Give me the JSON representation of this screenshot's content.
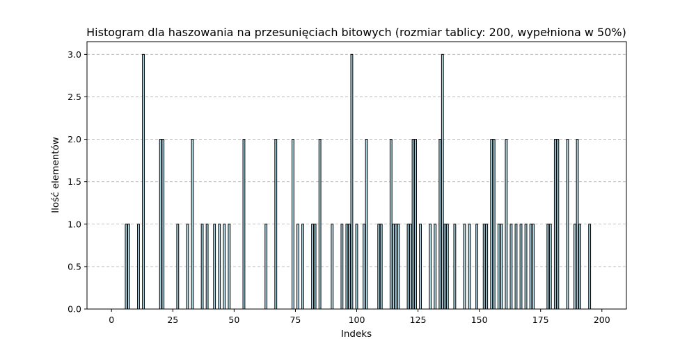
{
  "chart_data": {
    "type": "bar",
    "title": "Histogram dla haszowania na przesunięciach bitowych (rozmiar tablicy: 200, wypełniona w 50%)",
    "xlabel": "Indeks",
    "ylabel": "Ilość elementów",
    "xlim": [
      -10,
      210
    ],
    "ylim": [
      0,
      3.15
    ],
    "xticks": [
      0,
      25,
      50,
      75,
      100,
      125,
      150,
      175,
      200
    ],
    "xtick_labels": [
      "0",
      "25",
      "50",
      "75",
      "100",
      "125",
      "150",
      "175",
      "200"
    ],
    "yticks": [
      0.0,
      0.5,
      1.0,
      1.5,
      2.0,
      2.5,
      3.0
    ],
    "ytick_labels": [
      "0.0",
      "0.5",
      "1.0",
      "1.5",
      "2.0",
      "2.5",
      "3.0"
    ],
    "grid": "y-dashed",
    "bar_color": "#add8e6",
    "edge_color": "#000000",
    "x": [
      6,
      7,
      11,
      13,
      20,
      21,
      27,
      31,
      33,
      37,
      39,
      42,
      44,
      46,
      48,
      54,
      63,
      67,
      74,
      76,
      78,
      82,
      83,
      85,
      90,
      94,
      96,
      97,
      98,
      100,
      103,
      104,
      109,
      110,
      114,
      115,
      116,
      117,
      121,
      122,
      123,
      124,
      126,
      130,
      132,
      134,
      135,
      136,
      137,
      140,
      144,
      146,
      149,
      152,
      153,
      155,
      156,
      158,
      159,
      161,
      163,
      165,
      167,
      169,
      171,
      172,
      178,
      179,
      181,
      182,
      186,
      189,
      190,
      191,
      195
    ],
    "values": [
      1,
      1,
      1,
      3,
      2,
      2,
      1,
      1,
      2,
      1,
      1,
      1,
      1,
      1,
      1,
      2,
      1,
      2,
      2,
      1,
      1,
      1,
      1,
      2,
      1,
      1,
      1,
      1,
      3,
      1,
      1,
      2,
      1,
      1,
      2,
      1,
      1,
      1,
      1,
      1,
      2,
      2,
      1,
      1,
      1,
      2,
      3,
      1,
      1,
      1,
      1,
      1,
      1,
      1,
      1,
      2,
      2,
      1,
      1,
      2,
      1,
      1,
      1,
      1,
      1,
      1,
      1,
      1,
      2,
      2,
      2,
      1,
      2,
      1,
      1
    ]
  }
}
